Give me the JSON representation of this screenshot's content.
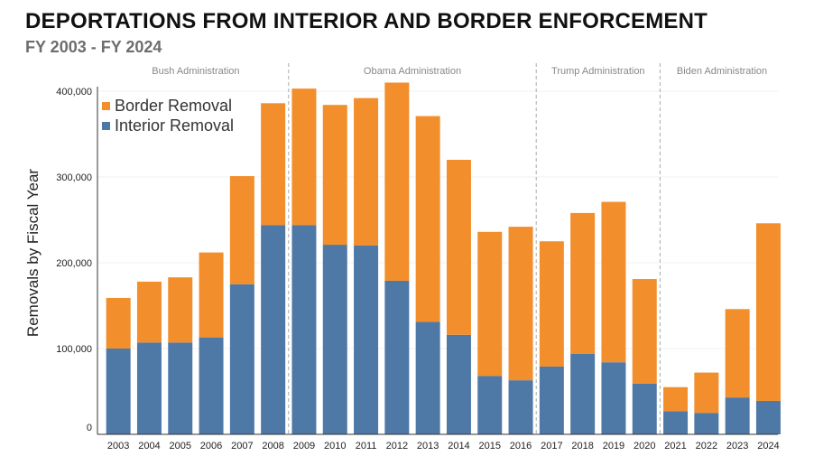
{
  "chart_data": {
    "type": "bar",
    "stacked": true,
    "title": "DEPORTATIONS FROM INTERIOR AND BORDER ENFORCEMENT",
    "subtitle": "FY 2003 - FY 2024",
    "ylabel": "Removals by Fiscal Year",
    "xlabel": "",
    "ylim": [
      0,
      400000
    ],
    "yticks": [
      0,
      100000,
      200000,
      300000,
      400000
    ],
    "ytick_labels": [
      "0",
      "100,000",
      "200,000",
      "300,000",
      "400,000"
    ],
    "categories": [
      "2003",
      "2004",
      "2005",
      "2006",
      "2007",
      "2008",
      "2009",
      "2010",
      "2011",
      "2012",
      "2013",
      "2014",
      "2015",
      "2016",
      "2017",
      "2018",
      "2019",
      "2020",
      "2021",
      "2022",
      "2023",
      "2024"
    ],
    "series": [
      {
        "name": "Interior Removal",
        "color": "#4e79a7",
        "values": [
          100000,
          107000,
          107000,
          113000,
          175000,
          244000,
          244000,
          221000,
          220000,
          179000,
          131000,
          116000,
          68000,
          63000,
          79000,
          94000,
          84000,
          59000,
          27000,
          25000,
          43000,
          39000
        ]
      },
      {
        "name": "Border Removal",
        "color": "#f28e2b",
        "values": [
          59000,
          71000,
          76000,
          99000,
          126000,
          142000,
          159000,
          163000,
          172000,
          231000,
          240000,
          204000,
          168000,
          179000,
          146000,
          164000,
          187000,
          122000,
          28000,
          47000,
          103000,
          207000
        ]
      }
    ],
    "legend_order": [
      "Border Removal",
      "Interior Removal"
    ],
    "legend_position": "top-left",
    "grid": false,
    "administrations": [
      {
        "label": "Bush Administration",
        "start": "2003",
        "end": "2008"
      },
      {
        "label": "Obama Administration",
        "start": "2009",
        "end": "2016"
      },
      {
        "label": "Trump Administration",
        "start": "2017",
        "end": "2020"
      },
      {
        "label": "Biden Administration",
        "start": "2021",
        "end": "2024"
      }
    ]
  }
}
